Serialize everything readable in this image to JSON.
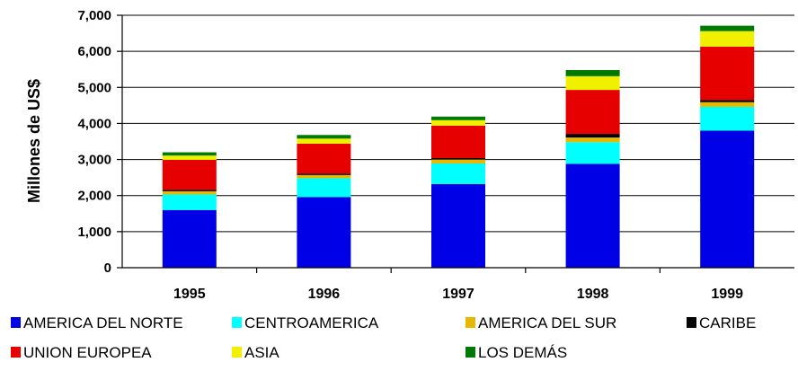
{
  "chart_data": {
    "type": "bar",
    "stacked": true,
    "title": "",
    "xlabel": "",
    "ylabel": "Millones de US$",
    "ylim": [
      0,
      7000
    ],
    "yticks": [
      0,
      1000,
      2000,
      3000,
      4000,
      5000,
      6000,
      7000
    ],
    "ytick_labels": [
      "0",
      "1,000",
      "2,000",
      "3,000",
      "4,000",
      "5,000",
      "6,000",
      "7,000"
    ],
    "grid": true,
    "legend_position": "bottom",
    "categories": [
      "1995",
      "1996",
      "1997",
      "1998",
      "1999"
    ],
    "series": [
      {
        "name": "AMERICA DEL NORTE",
        "color": "#0000e6",
        "values": [
          1600,
          1960,
          2320,
          2880,
          3800
        ]
      },
      {
        "name": "CENTROAMERICA",
        "color": "#00ffff",
        "values": [
          430,
          520,
          570,
          600,
          660
        ]
      },
      {
        "name": "AMERICA DEL SUR",
        "color": "#e6b800",
        "values": [
          90,
          90,
          110,
          130,
          130
        ]
      },
      {
        "name": "CARIBE",
        "color": "#000000",
        "values": [
          40,
          40,
          40,
          100,
          60
        ]
      },
      {
        "name": "UNION EUROPEA",
        "color": "#e60000",
        "values": [
          830,
          830,
          900,
          1220,
          1480
        ]
      },
      {
        "name": "ASIA",
        "color": "#f0f000",
        "values": [
          120,
          140,
          150,
          380,
          430
        ]
      },
      {
        "name": "LOS DEMÁS",
        "color": "#007a00",
        "values": [
          90,
          100,
          100,
          170,
          150
        ]
      }
    ]
  }
}
